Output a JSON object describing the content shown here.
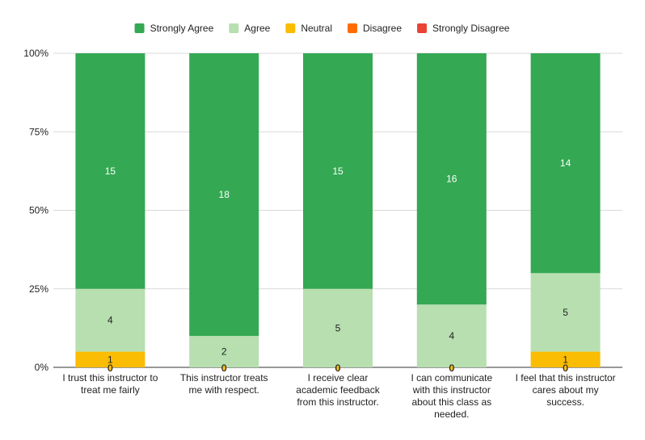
{
  "chart_data": {
    "type": "bar",
    "stacked": "percent",
    "categories": [
      [
        "I trust this instructor to",
        "treat me fairly"
      ],
      [
        "This instructor treats",
        "me with respect."
      ],
      [
        "I receive clear",
        "academic feedback",
        "from this instructor."
      ],
      [
        "I can communicate",
        "with this instructor",
        "about this class as",
        "needed."
      ],
      [
        "I feel that this instructor",
        "cares about my",
        "success."
      ]
    ],
    "series": [
      {
        "name": "Strongly Disagree",
        "color": "#ea4335",
        "values": [
          0,
          0,
          0,
          0,
          0
        ]
      },
      {
        "name": "Disagree",
        "color": "#ff6d01",
        "values": [
          0,
          0,
          0,
          0,
          0
        ]
      },
      {
        "name": "Neutral",
        "color": "#fbbc04",
        "values": [
          1,
          0,
          0,
          0,
          1
        ]
      },
      {
        "name": "Agree",
        "color": "#b7dfb0",
        "values": [
          4,
          2,
          5,
          4,
          5
        ]
      },
      {
        "name": "Strongly Agree",
        "color": "#34a853",
        "values": [
          15,
          18,
          15,
          16,
          14
        ]
      }
    ],
    "legend_order": [
      "Strongly Agree",
      "Agree",
      "Neutral",
      "Disagree",
      "Strongly Disagree"
    ],
    "legend_position": "top",
    "y_ticks": [
      "0%",
      "25%",
      "50%",
      "75%",
      "100%"
    ],
    "ylim": [
      0,
      100
    ],
    "grid": true
  }
}
